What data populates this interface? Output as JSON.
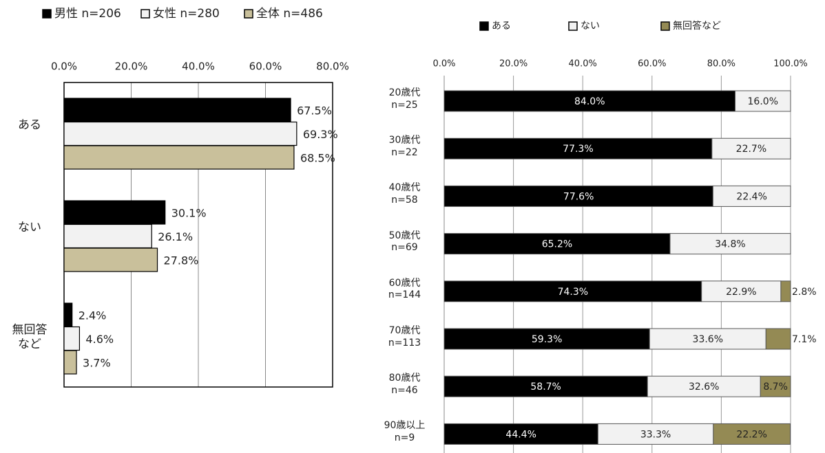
{
  "chart_data": [
    {
      "type": "bar",
      "categories": [
        "ある",
        "ない",
        "無回答など"
      ],
      "series": [
        {
          "name": "男性 n=206",
          "color": "#000000",
          "values": [
            67.5,
            30.1,
            2.4
          ],
          "value_labels": [
            "67.5%",
            "30.1%",
            "2.4%"
          ]
        },
        {
          "name": "女性 n=280",
          "color": "#f2f2f2",
          "values": [
            69.3,
            26.1,
            4.6
          ],
          "value_labels": [
            "69.3%",
            "26.1%",
            "4.6%"
          ]
        },
        {
          "name": "全体 n=486",
          "color": "#c9c09b",
          "values": [
            68.5,
            27.8,
            3.7
          ],
          "value_labels": [
            "68.5%",
            "27.8%",
            "3.7%"
          ]
        }
      ],
      "xlim": [
        0,
        80
      ],
      "xticks": [
        {
          "value": 0,
          "label": "0.0%"
        },
        {
          "value": 20,
          "label": "20.0%"
        },
        {
          "value": 40,
          "label": "40.0%"
        },
        {
          "value": 60,
          "label": "60.0%"
        },
        {
          "value": 80,
          "label": "80.0%"
        }
      ],
      "grid": true
    },
    {
      "type": "stacked_bar",
      "categories": [
        "20歳代 n=25",
        "30歳代 n=22",
        "40歳代 n=58",
        "50歳代 n=69",
        "60歳代 n=144",
        "70歳代 n=113",
        "80歳代 n=46",
        "90歳以上 n=9"
      ],
      "series": [
        {
          "name": "ある",
          "color": "#000000",
          "values": [
            84.0,
            77.3,
            77.6,
            65.2,
            74.3,
            59.3,
            58.7,
            44.4
          ],
          "value_labels": [
            "84.0%",
            "77.3%",
            "77.6%",
            "65.2%",
            "74.3%",
            "59.3%",
            "58.7%",
            "44.4%"
          ]
        },
        {
          "name": "ない",
          "color": "#f2f2f2",
          "values": [
            16.0,
            22.7,
            22.4,
            34.8,
            22.9,
            33.6,
            32.6,
            33.3
          ],
          "value_labels": [
            "16.0%",
            "22.7%",
            "22.4%",
            "34.8%",
            "22.9%",
            "33.6%",
            "32.6%",
            "33.3%"
          ]
        },
        {
          "name": "無回答など",
          "color": "#948a54",
          "values": [
            null,
            null,
            null,
            null,
            2.8,
            7.1,
            8.7,
            22.2
          ],
          "value_labels": [
            null,
            null,
            null,
            null,
            "2.8%",
            "7.1%",
            "8.7%",
            "22.2%"
          ]
        }
      ],
      "xlim": [
        0,
        100
      ],
      "xticks": [
        {
          "value": 0,
          "label": "0.0%"
        },
        {
          "value": 20,
          "label": "20.0%"
        },
        {
          "value": 40,
          "label": "40.0%"
        },
        {
          "value": 60,
          "label": "60.0%"
        },
        {
          "value": 80,
          "label": "80.0%"
        },
        {
          "value": 100,
          "label": "100.0%"
        }
      ],
      "grid": true
    }
  ]
}
